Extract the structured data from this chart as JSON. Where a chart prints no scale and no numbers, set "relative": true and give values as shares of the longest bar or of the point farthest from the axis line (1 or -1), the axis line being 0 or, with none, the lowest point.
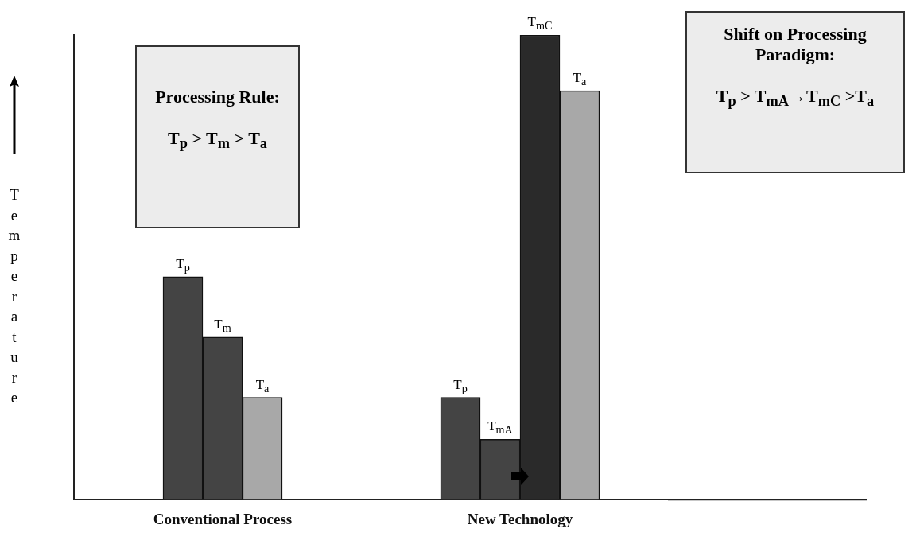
{
  "chart_data": {
    "type": "bar",
    "relative": true,
    "ylabel": "Temperature",
    "categories": [
      "Conventional Process",
      "New Technology"
    ],
    "series": [
      {
        "name": "T$_{p}$",
        "color": "#444444",
        "values": [
          0.48,
          0.22
        ]
      },
      {
        "name": "T$_{m}$",
        "color": "#444444",
        "values": [
          0.35,
          null
        ]
      },
      {
        "name": "T$_{mA}$",
        "color": "#444444",
        "values": [
          null,
          0.13
        ]
      },
      {
        "name": "T$_{mC}$",
        "color": "#2a2a2a",
        "values": [
          null,
          1
        ]
      },
      {
        "name": "T$_{a}$",
        "color": "#a8a8a8",
        "values": [
          0.22,
          0.88
        ]
      }
    ],
    "annotations": [
      "Processing Rule:",
      "T$_{p}$ > T$_{m}$ > T$_{a}$",
      "Shift on Processing Paradigm:",
      "T$_{p}$ > T$_{mA}$→T$_{mC}$ >T$_{a}$"
    ],
    "legend": false,
    "grid": false
  }
}
